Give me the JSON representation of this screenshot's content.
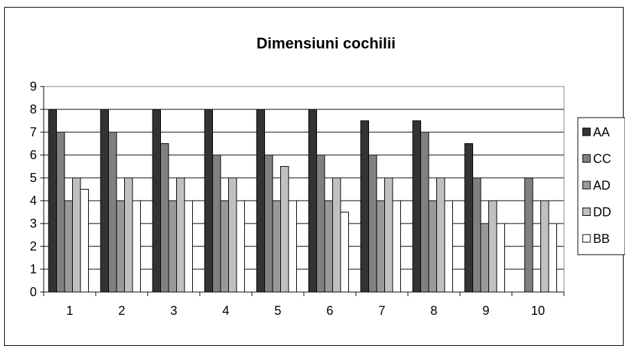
{
  "chart_data": {
    "type": "bar",
    "title": "Dimensiuni cochilii",
    "xlabel": "",
    "ylabel": "",
    "categories": [
      "1",
      "2",
      "3",
      "4",
      "5",
      "6",
      "7",
      "8",
      "9",
      "10"
    ],
    "ylim": [
      0,
      9
    ],
    "yticks": [
      "0",
      "1",
      "2",
      "3",
      "4",
      "5",
      "6",
      "7",
      "8",
      "9"
    ],
    "grid": true,
    "legend_position": "right",
    "series": [
      {
        "name": "AA",
        "color": "#333333",
        "values": [
          8,
          8,
          8,
          8,
          8,
          8,
          7.5,
          7.5,
          6.5,
          0
        ]
      },
      {
        "name": "CC",
        "color": "#808080",
        "values": [
          7,
          7,
          6.5,
          6,
          6,
          6,
          6,
          7,
          5,
          5
        ]
      },
      {
        "name": "AD",
        "color": "#999999",
        "values": [
          4,
          4,
          4,
          4,
          4,
          4,
          4,
          4,
          3,
          0
        ]
      },
      {
        "name": "DD",
        "color": "#c0c0c0",
        "values": [
          5,
          5,
          5,
          5,
          5.5,
          5,
          5,
          5,
          4,
          4
        ]
      },
      {
        "name": "BB",
        "color": "#ffffff",
        "values": [
          4.5,
          4,
          4,
          4,
          4,
          3.5,
          4,
          4,
          3,
          3
        ]
      }
    ]
  }
}
